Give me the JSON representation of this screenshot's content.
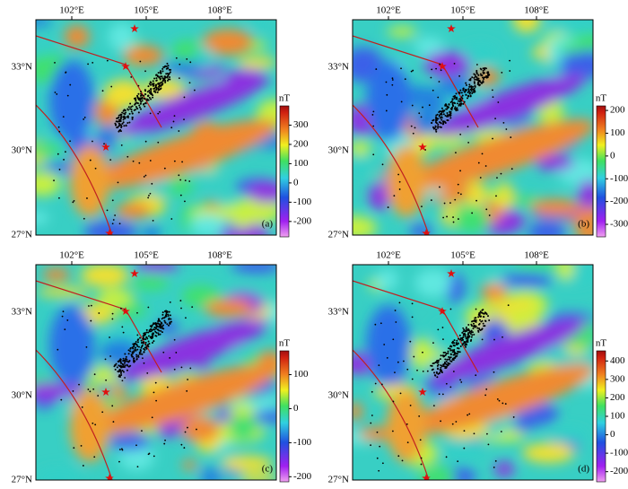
{
  "lon_ticks": [
    "102°E",
    "105°E",
    "108°E"
  ],
  "lat_ticks": [
    "33°N",
    "30°N",
    "27°N"
  ],
  "panels": [
    {
      "label": "(a)",
      "colorbar": {
        "unit": "nT",
        "lim": [
          -280,
          400
        ],
        "ticks": [
          300,
          200,
          100,
          0,
          -100,
          -200
        ]
      }
    },
    {
      "label": "(b)",
      "colorbar": {
        "unit": "nT",
        "lim": [
          -355,
          220
        ],
        "ticks": [
          200,
          100,
          0,
          -100,
          -200,
          -300
        ]
      }
    },
    {
      "label": "(c)",
      "colorbar": {
        "unit": "nT",
        "lim": [
          -215,
          170
        ],
        "ticks": [
          100,
          0,
          -100,
          -200
        ]
      }
    },
    {
      "label": "(d)",
      "colorbar": {
        "unit": "nT",
        "lim": [
          -255,
          455
        ],
        "ticks": [
          400,
          300,
          200,
          100,
          0,
          -100,
          -200
        ]
      }
    }
  ]
}
